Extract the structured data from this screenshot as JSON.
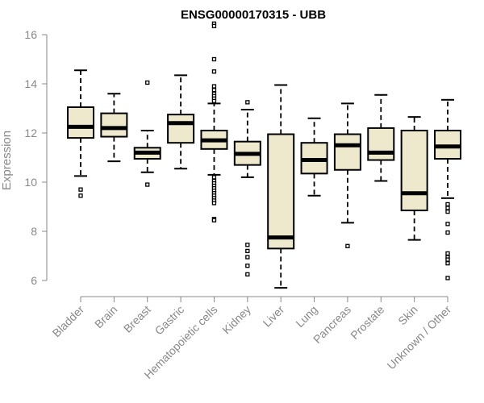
{
  "chart_data": {
    "type": "boxplot",
    "title": "ENSG00000170315 - UBB",
    "xlabel": "",
    "ylabel": "Expression",
    "ylim": [
      5.6,
      16.5
    ],
    "yticks": [
      6,
      8,
      10,
      12,
      14,
      16
    ],
    "ytick_labels": [
      "6",
      "8",
      "10",
      "12",
      "14",
      "16"
    ],
    "grid": false,
    "colors": {
      "box_fill": "#EEE8CC",
      "stroke": "#000000",
      "axis": "#888888",
      "title": "#000000"
    },
    "categories": [
      "Bladder",
      "Brain",
      "Breast",
      "Gastric",
      "Hematopoietic cells",
      "Kidney",
      "Liver",
      "Lung",
      "Pancreas",
      "Prostate",
      "Skin",
      "Unknown / Other"
    ],
    "boxes": [
      {
        "label": "Bladder",
        "whisker_low": 10.25,
        "q1": 11.8,
        "median": 12.25,
        "q3": 13.05,
        "whisker_high": 14.55,
        "outliers": [
          9.7,
          9.45
        ]
      },
      {
        "label": "Brain",
        "whisker_low": 10.85,
        "q1": 11.85,
        "median": 12.2,
        "q3": 12.8,
        "whisker_high": 13.6,
        "outliers": []
      },
      {
        "label": "Breast",
        "whisker_low": 10.4,
        "q1": 10.95,
        "median": 11.2,
        "q3": 11.4,
        "whisker_high": 12.1,
        "outliers": [
          14.05,
          9.9
        ]
      },
      {
        "label": "Gastric",
        "whisker_low": 10.55,
        "q1": 11.6,
        "median": 12.4,
        "q3": 12.75,
        "whisker_high": 14.35,
        "outliers": []
      },
      {
        "label": "Hematopoietic cells",
        "whisker_low": 10.3,
        "q1": 11.35,
        "median": 11.7,
        "q3": 12.1,
        "whisker_high": 13.2,
        "outliers": [
          16.45,
          16.35,
          15.0,
          14.5,
          13.9,
          13.75,
          13.6,
          13.5,
          13.4,
          13.3,
          10.2,
          10.05,
          9.95,
          9.85,
          9.75,
          9.65,
          9.55,
          9.45,
          9.35,
          9.25,
          9.15,
          8.5,
          8.45
        ]
      },
      {
        "label": "Kidney",
        "whisker_low": 10.2,
        "q1": 10.7,
        "median": 11.15,
        "q3": 11.65,
        "whisker_high": 12.95,
        "outliers": [
          13.25,
          7.45,
          7.2,
          6.95,
          6.6,
          6.25
        ]
      },
      {
        "label": "Liver",
        "whisker_low": 5.7,
        "q1": 7.3,
        "median": 7.75,
        "q3": 11.95,
        "whisker_high": 13.95,
        "outliers": []
      },
      {
        "label": "Lung",
        "whisker_low": 9.45,
        "q1": 10.35,
        "median": 10.9,
        "q3": 11.6,
        "whisker_high": 12.6,
        "outliers": []
      },
      {
        "label": "Pancreas",
        "whisker_low": 8.35,
        "q1": 10.5,
        "median": 11.5,
        "q3": 11.95,
        "whisker_high": 13.2,
        "outliers": [
          7.4
        ]
      },
      {
        "label": "Prostate",
        "whisker_low": 10.05,
        "q1": 10.9,
        "median": 11.2,
        "q3": 12.2,
        "whisker_high": 13.55,
        "outliers": []
      },
      {
        "label": "Skin",
        "whisker_low": 7.65,
        "q1": 8.85,
        "median": 9.55,
        "q3": 12.1,
        "whisker_high": 12.65,
        "outliers": []
      },
      {
        "label": "Unknown / Other",
        "whisker_low": 9.35,
        "q1": 10.95,
        "median": 11.45,
        "q3": 12.1,
        "whisker_high": 13.35,
        "outliers": [
          9.1,
          8.95,
          8.8,
          8.3,
          7.95,
          7.1,
          6.95,
          6.85,
          6.7,
          6.1
        ]
      }
    ]
  }
}
